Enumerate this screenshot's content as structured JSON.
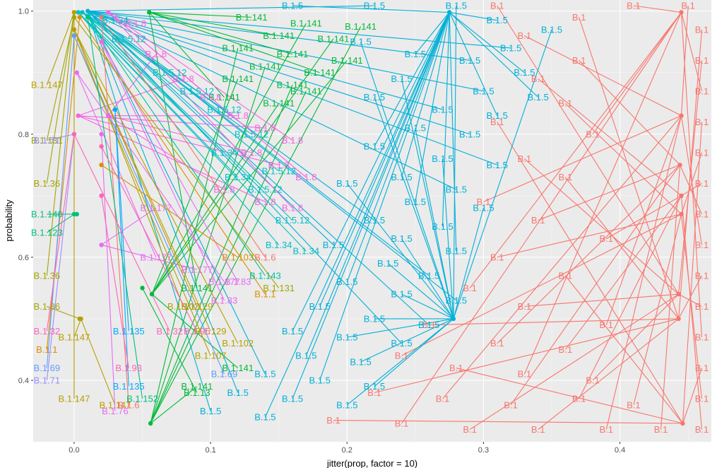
{
  "chart_data": {
    "type": "scatter",
    "title": "",
    "xlabel": "jitter(prop, factor = 10)",
    "ylabel": "probability",
    "xlim": [
      -0.03,
      0.467
    ],
    "ylim": [
      0.3,
      1.018
    ],
    "x_ticks": [
      0.0,
      0.1,
      0.2,
      0.3,
      0.4
    ],
    "x_tick_labels": [
      "0.0",
      "0.1",
      "0.2",
      "0.3",
      "0.4"
    ],
    "y_ticks": [
      0.4,
      0.6,
      0.8,
      1.0
    ],
    "y_tick_labels": [
      "0.4",
      "0.6",
      "0.8",
      "1.0"
    ],
    "grid": true,
    "legend": "none",
    "annotation": "Each point is labeled with its lineage; text labels are offset from points with connector segments.",
    "series": [
      {
        "name": "B.1",
        "color": "#F8766D",
        "points": [
          [
            0.445,
            0.998
          ],
          [
            0.443,
            0.54
          ],
          [
            0.443,
            0.5
          ],
          [
            0.445,
            0.83
          ],
          [
            0.444,
            0.75
          ],
          [
            0.445,
            0.7
          ],
          [
            0.445,
            0.67
          ],
          [
            0.446,
            0.33
          ]
        ],
        "label_points": [
          [
            0.41,
            1.012
          ],
          [
            0.31,
            1.012
          ],
          [
            0.37,
            0.99
          ],
          [
            0.33,
            0.96
          ],
          [
            0.37,
            0.92
          ],
          [
            0.34,
            0.89
          ],
          [
            0.36,
            0.85
          ],
          [
            0.31,
            0.82
          ],
          [
            0.38,
            0.8
          ],
          [
            0.33,
            0.76
          ],
          [
            0.36,
            0.73
          ],
          [
            0.3,
            0.69
          ],
          [
            0.34,
            0.66
          ],
          [
            0.39,
            0.63
          ],
          [
            0.31,
            0.6
          ],
          [
            0.36,
            0.57
          ],
          [
            0.29,
            0.55
          ],
          [
            0.33,
            0.52
          ],
          [
            0.26,
            0.49
          ],
          [
            0.39,
            0.49
          ],
          [
            0.31,
            0.46
          ],
          [
            0.36,
            0.45
          ],
          [
            0.24,
            0.44
          ],
          [
            0.28,
            0.42
          ],
          [
            0.33,
            0.41
          ],
          [
            0.38,
            0.4
          ],
          [
            0.22,
            0.38
          ],
          [
            0.27,
            0.37
          ],
          [
            0.32,
            0.36
          ],
          [
            0.37,
            0.37
          ],
          [
            0.41,
            0.36
          ],
          [
            0.19,
            0.335
          ],
          [
            0.24,
            0.33
          ],
          [
            0.29,
            0.32
          ],
          [
            0.34,
            0.32
          ],
          [
            0.39,
            0.32
          ],
          [
            0.43,
            0.32
          ],
          [
            0.46,
            0.32
          ],
          [
            0.46,
            0.37
          ],
          [
            0.46,
            0.42
          ],
          [
            0.46,
            0.47
          ],
          [
            0.46,
            0.52
          ],
          [
            0.46,
            0.57
          ],
          [
            0.46,
            0.62
          ],
          [
            0.46,
            0.67
          ],
          [
            0.46,
            0.72
          ],
          [
            0.46,
            0.77
          ],
          [
            0.46,
            0.82
          ],
          [
            0.46,
            0.87
          ],
          [
            0.46,
            0.92
          ],
          [
            0.46,
            0.97
          ],
          [
            0.45,
            1.012
          ]
        ]
      },
      {
        "name": "B.1.5",
        "color": "#00B0D8",
        "points": [
          [
            0.275,
            0.998
          ],
          [
            0.278,
            0.5
          ],
          [
            0.01,
            1.0
          ]
        ],
        "label_points": [
          [
            0.31,
            0.985
          ],
          [
            0.35,
            0.97
          ],
          [
            0.32,
            0.94
          ],
          [
            0.25,
            0.93
          ],
          [
            0.21,
            0.95
          ],
          [
            0.29,
            0.92
          ],
          [
            0.33,
            0.9
          ],
          [
            0.24,
            0.89
          ],
          [
            0.3,
            0.87
          ],
          [
            0.34,
            0.86
          ],
          [
            0.22,
            0.86
          ],
          [
            0.27,
            0.84
          ],
          [
            0.31,
            0.83
          ],
          [
            0.25,
            0.81
          ],
          [
            0.29,
            0.8
          ],
          [
            0.22,
            0.78
          ],
          [
            0.27,
            0.76
          ],
          [
            0.31,
            0.75
          ],
          [
            0.24,
            0.73
          ],
          [
            0.2,
            0.72
          ],
          [
            0.28,
            0.71
          ],
          [
            0.25,
            0.69
          ],
          [
            0.3,
            0.68
          ],
          [
            0.22,
            0.66
          ],
          [
            0.27,
            0.65
          ],
          [
            0.24,
            0.63
          ],
          [
            0.19,
            0.62
          ],
          [
            0.28,
            0.61
          ],
          [
            0.23,
            0.59
          ],
          [
            0.26,
            0.57
          ],
          [
            0.2,
            0.56
          ],
          [
            0.24,
            0.54
          ],
          [
            0.28,
            0.53
          ],
          [
            0.18,
            0.52
          ],
          [
            0.22,
            0.5
          ],
          [
            0.26,
            0.49
          ],
          [
            0.16,
            0.48
          ],
          [
            0.2,
            0.47
          ],
          [
            0.24,
            0.46
          ],
          [
            0.17,
            0.44
          ],
          [
            0.21,
            0.43
          ],
          [
            0.14,
            0.41
          ],
          [
            0.18,
            0.4
          ],
          [
            0.22,
            0.39
          ],
          [
            0.12,
            0.38
          ],
          [
            0.16,
            0.37
          ],
          [
            0.2,
            0.36
          ],
          [
            0.1,
            0.35
          ],
          [
            0.14,
            0.34
          ],
          [
            0.28,
            1.012
          ],
          [
            0.22,
            1.012
          ],
          [
            0.16,
            1.012
          ]
        ]
      },
      {
        "name": "B.1.141",
        "color": "#00BA38",
        "points": [
          [
            0.055,
            0.998
          ],
          [
            0.057,
            0.54
          ],
          [
            0.056,
            0.33
          ]
        ],
        "label_points": [
          [
            0.13,
            0.99
          ],
          [
            0.17,
            0.98
          ],
          [
            0.21,
            0.975
          ],
          [
            0.15,
            0.96
          ],
          [
            0.19,
            0.955
          ],
          [
            0.12,
            0.94
          ],
          [
            0.16,
            0.93
          ],
          [
            0.2,
            0.92
          ],
          [
            0.14,
            0.91
          ],
          [
            0.18,
            0.9
          ],
          [
            0.12,
            0.89
          ],
          [
            0.16,
            0.88
          ],
          [
            0.11,
            0.86
          ],
          [
            0.15,
            0.85
          ],
          [
            0.17,
            0.87
          ],
          [
            0.09,
            0.55
          ],
          [
            0.12,
            0.42
          ],
          [
            0.09,
            0.39
          ]
        ]
      },
      {
        "name": "B.1.8",
        "color": "#F564E3",
        "points": [
          [
            0.025,
            0.998
          ],
          [
            0.025,
            0.83
          ],
          [
            0.003,
            0.83
          ]
        ],
        "label_points": [
          [
            0.045,
            0.98
          ],
          [
            0.06,
            0.93
          ],
          [
            0.08,
            0.89
          ],
          [
            0.1,
            0.86
          ],
          [
            0.12,
            0.83
          ],
          [
            0.14,
            0.81
          ],
          [
            0.16,
            0.79
          ],
          [
            0.13,
            0.77
          ],
          [
            0.15,
            0.75
          ],
          [
            0.17,
            0.73
          ],
          [
            0.11,
            0.71
          ],
          [
            0.14,
            0.69
          ],
          [
            0.16,
            0.68
          ]
        ]
      },
      {
        "name": "B.1.5.12",
        "color": "#00BFC4",
        "points": [
          [
            0.006,
            0.998
          ]
        ],
        "label_points": [
          [
            0.04,
            0.955
          ],
          [
            0.07,
            0.9
          ],
          [
            0.09,
            0.87
          ],
          [
            0.11,
            0.84
          ],
          [
            0.13,
            0.8
          ],
          [
            0.15,
            0.74
          ],
          [
            0.14,
            0.71
          ],
          [
            0.16,
            0.66
          ]
        ]
      },
      {
        "name": "B.1.34",
        "color": "#00BFC4",
        "points": [
          [
            0.003,
            0.998
          ]
        ],
        "label_points": [
          [
            0.03,
            0.985
          ],
          [
            0.11,
            0.77
          ],
          [
            0.12,
            0.73
          ],
          [
            0.15,
            0.62
          ],
          [
            0.17,
            0.61
          ]
        ]
      },
      {
        "name": "B.1.36",
        "color": "#A3A500",
        "points": [
          [
            0.0,
            0.998
          ],
          [
            0.004,
            0.5
          ]
        ],
        "label_points": [
          [
            -0.02,
            0.57
          ],
          [
            -0.02,
            0.52
          ],
          [
            -0.02,
            0.72
          ]
        ]
      },
      {
        "name": "B.1.147",
        "color": "#B79F00",
        "points": [
          [
            0.0,
            0.998
          ],
          [
            0.005,
            0.5
          ]
        ],
        "label_points": [
          [
            -0.02,
            0.88
          ],
          [
            0.0,
            0.47
          ],
          [
            0.0,
            0.37
          ],
          [
            0.03,
            0.36
          ]
        ]
      },
      {
        "name": "B.1.177",
        "color": "#E76BF3",
        "points": [
          [
            0.002,
            0.9
          ],
          [
            0.02,
            0.62
          ]
        ],
        "label_points": [
          [
            0.06,
            0.6
          ],
          [
            0.09,
            0.58
          ],
          [
            0.11,
            0.56
          ],
          [
            0.06,
            0.68
          ]
        ]
      },
      {
        "name": "B.1.1",
        "color": "#DB8E00",
        "points": [
          [
            0.004,
            0.99
          ]
        ],
        "label_points": [
          [
            0.14,
            0.54
          ],
          [
            -0.02,
            0.45
          ]
        ]
      },
      {
        "name": "B.1.143",
        "color": "#00C19A",
        "points": [
          [
            0.01,
            0.99
          ]
        ],
        "label_points": [
          [
            0.14,
            0.57
          ]
        ]
      },
      {
        "name": "B.1.6",
        "color": "#F8766D",
        "points": [
          [
            0.02,
            0.99
          ]
        ],
        "label_points": [
          [
            0.14,
            0.6
          ],
          [
            0.04,
            0.36
          ]
        ]
      },
      {
        "name": "B.1.83",
        "color": "#E76BF3",
        "points": [
          [
            0.02,
            0.95
          ]
        ],
        "label_points": [
          [
            0.11,
            0.53
          ],
          [
            0.12,
            0.56
          ]
        ]
      },
      {
        "name": "B.1.129",
        "color": "#B79F00",
        "points": [
          [
            0.0,
            0.97
          ]
        ],
        "label_points": [
          [
            0.1,
            0.48
          ],
          [
            0.09,
            0.52
          ]
        ]
      },
      {
        "name": "B.1.102",
        "color": "#B79F00",
        "points": [
          [
            0.0,
            0.97
          ]
        ],
        "label_points": [
          [
            0.12,
            0.46
          ],
          [
            0.08,
            0.52
          ]
        ]
      },
      {
        "name": "B.1.107",
        "color": "#B79F00",
        "points": [
          [
            0.0,
            0.96
          ]
        ],
        "label_points": [
          [
            0.1,
            0.44
          ]
        ]
      },
      {
        "name": "B.1.69",
        "color": "#619CFF",
        "points": [
          [
            0.0,
            0.96
          ]
        ],
        "label_points": [
          [
            0.11,
            0.41
          ],
          [
            -0.02,
            0.42
          ]
        ]
      },
      {
        "name": "B.1.135",
        "color": "#00A9FF",
        "points": [
          [
            0.03,
            0.84
          ]
        ],
        "label_points": [
          [
            0.04,
            0.48
          ],
          [
            0.04,
            0.39
          ]
        ]
      },
      {
        "name": "B.1.123",
        "color": "#00BF7D",
        "points": [
          [
            0.0,
            0.67
          ]
        ],
        "label_points": [
          [
            -0.02,
            0.64
          ]
        ]
      },
      {
        "name": "B.1.140",
        "color": "#00BF7D",
        "points": [
          [
            0.002,
            0.67
          ]
        ],
        "label_points": [
          [
            -0.02,
            0.67
          ]
        ]
      },
      {
        "name": "B.1.131",
        "color": "#A3A500",
        "points": [
          [
            0.0,
            0.99
          ]
        ],
        "label_points": [
          [
            0.15,
            0.55
          ],
          [
            -0.02,
            0.79
          ]
        ]
      },
      {
        "name": "B.1.152",
        "color": "#00BF7D",
        "points": [
          [
            0.01,
            0.99
          ]
        ],
        "label_points": [
          [
            0.05,
            0.37
          ]
        ]
      },
      {
        "name": "B.1.13",
        "color": "#00BA38",
        "points": [
          [
            0.05,
            0.55
          ]
        ],
        "label_points": [
          [
            0.09,
            0.38
          ]
        ]
      },
      {
        "name": "B.1.71",
        "color": "#9590FF",
        "points": [
          [
            0.0,
            0.8
          ]
        ],
        "label_points": [
          [
            -0.02,
            0.4
          ],
          [
            -0.02,
            0.79
          ]
        ]
      },
      {
        "name": "B.1.76",
        "color": "#E76BF3",
        "points": [
          [
            0.02,
            0.8
          ]
        ],
        "label_points": [
          [
            0.03,
            0.35
          ]
        ]
      },
      {
        "name": "B.1.93",
        "color": "#FF62BC",
        "points": [
          [
            0.02,
            0.7
          ]
        ],
        "label_points": [
          [
            0.04,
            0.42
          ]
        ]
      },
      {
        "name": "B.1.103",
        "color": "#DB8E00",
        "points": [
          [
            0.02,
            0.75
          ]
        ],
        "label_points": [
          [
            0.12,
            0.6
          ]
        ]
      },
      {
        "name": "B.1.95",
        "color": "#FF62BC",
        "points": [
          [
            0.02,
            0.78
          ]
        ],
        "label_points": [
          [
            0.09,
            0.48
          ]
        ]
      },
      {
        "name": "B.1.32",
        "color": "#FF62BC",
        "points": [
          [
            0.0,
            0.8
          ]
        ],
        "label_points": [
          [
            -0.02,
            0.48
          ],
          [
            0.07,
            0.48
          ]
        ]
      }
    ]
  }
}
